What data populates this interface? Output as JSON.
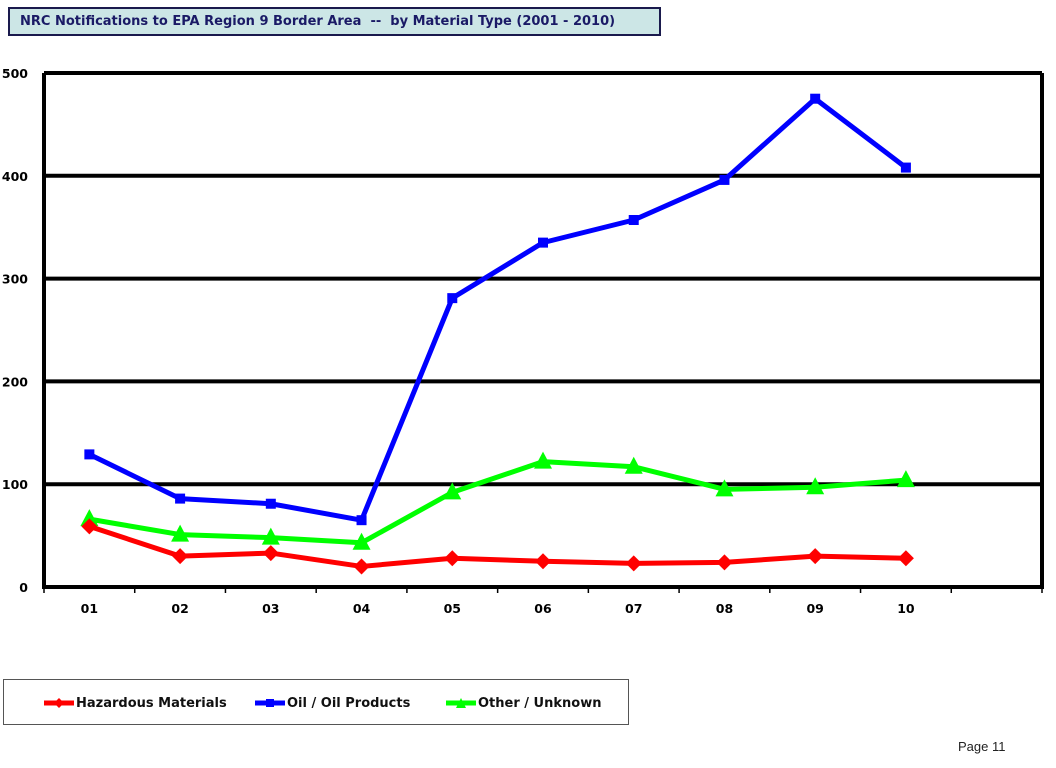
{
  "page": {
    "number_label": "Page 11"
  },
  "chart_data": {
    "type": "line",
    "title": "NRC Notifications to EPA Region 9 Border Area  --  by Material Type (2001 - 2010)",
    "xlabel": "",
    "ylabel": "",
    "categories": [
      "01",
      "02",
      "03",
      "04",
      "05",
      "06",
      "07",
      "08",
      "09",
      "10"
    ],
    "ylim": [
      0,
      500
    ],
    "yticks": [
      "0",
      "100",
      "200",
      "300",
      "400",
      "500"
    ],
    "grid": true,
    "legend_position": "bottom-left",
    "series": [
      {
        "name": "Hazardous Materials",
        "color": "#ff0000",
        "marker": "diamond-icon",
        "values": [
          59,
          30,
          33,
          20,
          28,
          25,
          23,
          24,
          30,
          28
        ]
      },
      {
        "name": "Oil / Oil Products",
        "color": "#0000ff",
        "marker": "square-icon",
        "values": [
          129,
          86,
          81,
          65,
          281,
          335,
          357,
          396,
          475,
          408
        ]
      },
      {
        "name": "Other / Unknown",
        "color": "#00ff00",
        "marker": "triangle-icon",
        "values": [
          66,
          51,
          48,
          43,
          92,
          122,
          117,
          95,
          97,
          104
        ]
      }
    ]
  }
}
